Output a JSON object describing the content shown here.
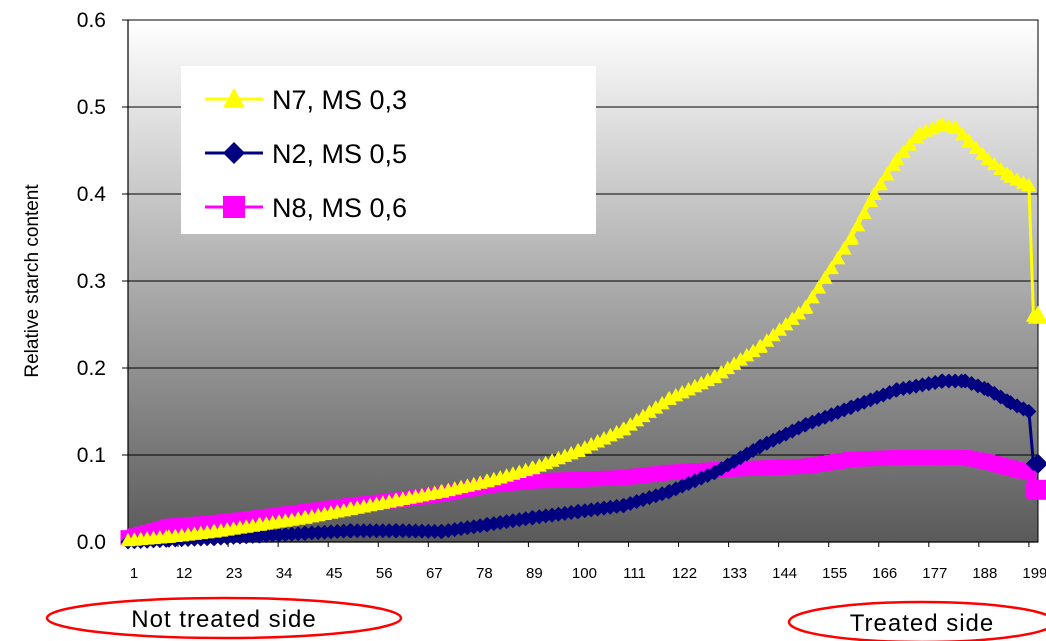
{
  "colors": {
    "n7": "#ffff00",
    "n2": "#000080",
    "n8": "#ff00ff",
    "ellipse": "#ff0000",
    "plot_bg_top": "#ffffff",
    "plot_bg_bottom": "#5a5a5a"
  },
  "annotations": {
    "left": "Not treated side",
    "right": "Treated side"
  },
  "chart_data": {
    "type": "line",
    "title": "",
    "xlabel": "",
    "ylabel": "Relative starch content",
    "ylim": [
      0,
      0.6
    ],
    "yticks": [
      "0.0",
      "0.1",
      "0.2",
      "0.3",
      "0.4",
      "0.5",
      "0.6"
    ],
    "xlim": [
      1,
      201
    ],
    "xticks": [
      "1",
      "12",
      "23",
      "34",
      "45",
      "56",
      "67",
      "78",
      "89",
      "100",
      "111",
      "122",
      "133",
      "144",
      "155",
      "166",
      "177",
      "188",
      "199"
    ],
    "grid": "horizontal",
    "legend_position": "top-left",
    "series": [
      {
        "name": "N7, MS 0,3",
        "marker": "triangle",
        "x": [
          1,
          10,
          20,
          30,
          40,
          50,
          60,
          70,
          80,
          90,
          100,
          110,
          120,
          130,
          140,
          150,
          160,
          165,
          170,
          175,
          180,
          183,
          186,
          190,
          195,
          199,
          200,
          201
        ],
        "y": [
          0.002,
          0.006,
          0.012,
          0.02,
          0.028,
          0.038,
          0.048,
          0.058,
          0.07,
          0.085,
          0.105,
          0.13,
          0.165,
          0.19,
          0.225,
          0.27,
          0.35,
          0.4,
          0.44,
          0.47,
          0.48,
          0.476,
          0.46,
          0.44,
          0.42,
          0.41,
          0.26,
          0.26
        ]
      },
      {
        "name": "N2, MS 0,5",
        "marker": "diamond",
        "x": [
          1,
          10,
          20,
          30,
          40,
          50,
          60,
          70,
          80,
          90,
          100,
          110,
          120,
          130,
          140,
          150,
          160,
          170,
          180,
          185,
          190,
          195,
          199,
          200,
          201
        ],
        "y": [
          0.0,
          0.002,
          0.004,
          0.007,
          0.01,
          0.013,
          0.013,
          0.012,
          0.02,
          0.028,
          0.035,
          0.042,
          0.058,
          0.08,
          0.11,
          0.135,
          0.155,
          0.175,
          0.185,
          0.185,
          0.175,
          0.16,
          0.15,
          0.09,
          0.09
        ]
      },
      {
        "name": "N8, MS 0,6",
        "marker": "square",
        "x": [
          1,
          10,
          20,
          30,
          40,
          50,
          60,
          70,
          80,
          90,
          100,
          110,
          120,
          130,
          140,
          150,
          160,
          170,
          180,
          185,
          190,
          195,
          199,
          200,
          201
        ],
        "y": [
          0.005,
          0.018,
          0.022,
          0.028,
          0.035,
          0.042,
          0.048,
          0.055,
          0.065,
          0.07,
          0.072,
          0.074,
          0.08,
          0.083,
          0.085,
          0.087,
          0.095,
          0.097,
          0.097,
          0.097,
          0.092,
          0.085,
          0.08,
          0.06,
          0.06
        ]
      }
    ]
  }
}
